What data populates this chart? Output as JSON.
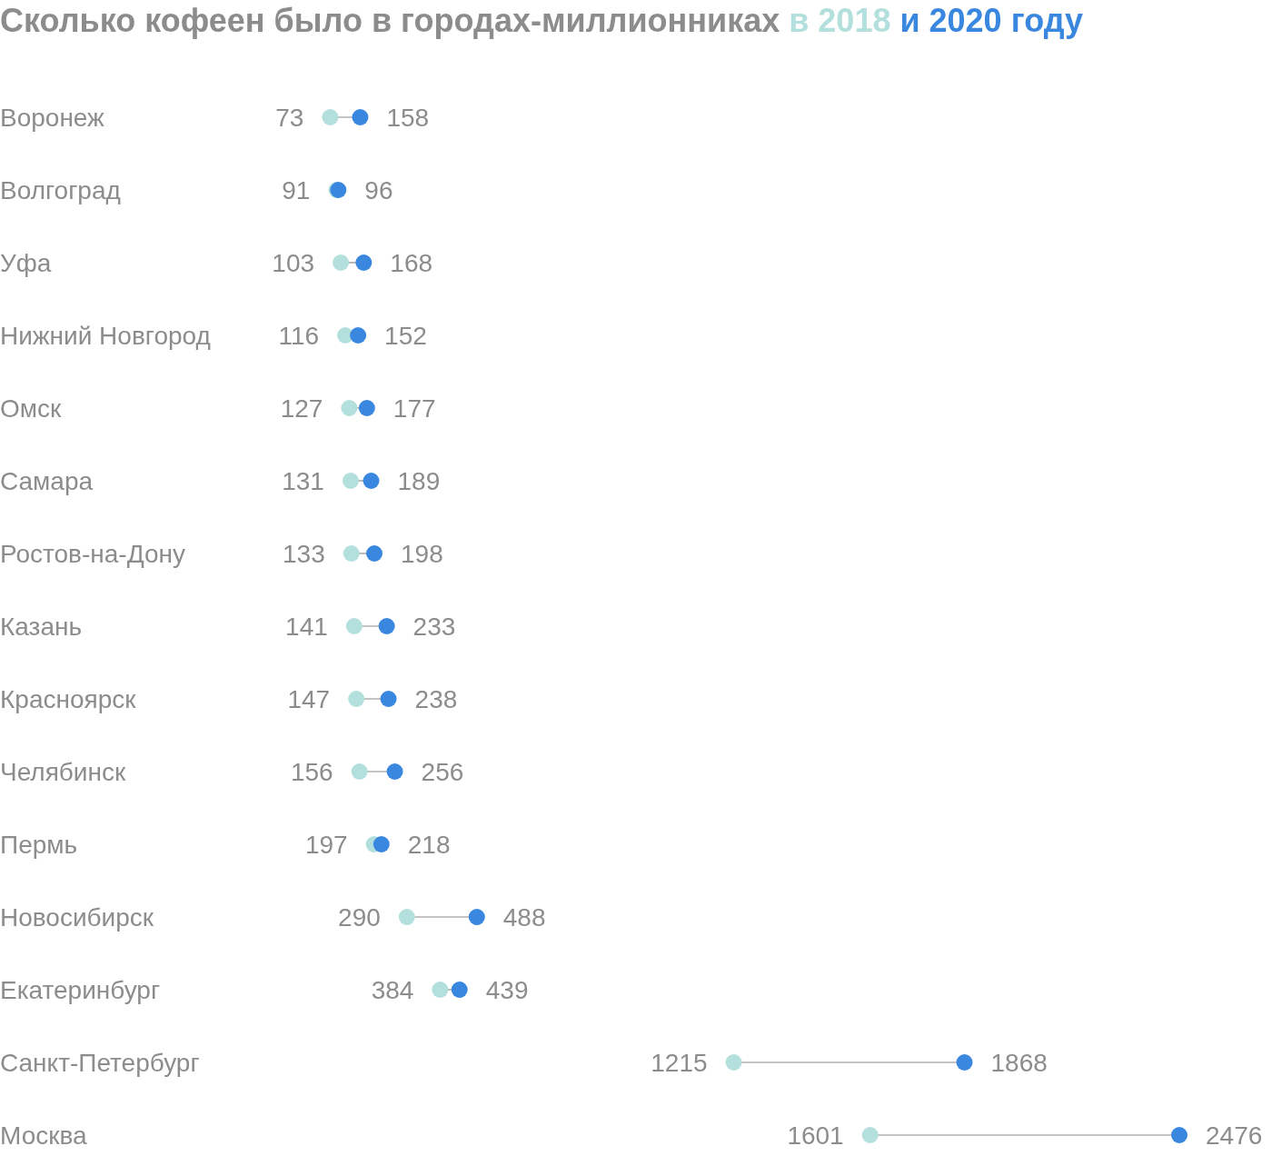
{
  "chart_data": {
    "type": "scatter",
    "orientation": "horizontal",
    "title": "Сколько кофеен было в городах-миллионниках",
    "categories": [
      "Воронеж",
      "Волгоград",
      "Уфа",
      "Нижний Новгород",
      "Омск",
      "Самара",
      "Ростов-на-Дону",
      "Казань",
      "Красноярск",
      "Челябинск",
      "Пермь",
      "Новосибирск",
      "Екатеринбург",
      "Санкт-Петербург",
      "Москва"
    ],
    "series": [
      {
        "name": "в 2018",
        "color": "#b3dfdc",
        "values": [
          73,
          91,
          103,
          116,
          127,
          131,
          133,
          141,
          147,
          156,
          197,
          290,
          384,
          1215,
          1601
        ]
      },
      {
        "name": "и 2020 году",
        "color": "#3a87e0",
        "values": [
          158,
          96,
          168,
          152,
          177,
          189,
          198,
          233,
          238,
          256,
          218,
          488,
          439,
          1868,
          2476
        ]
      }
    ],
    "data_labels": true,
    "marker": "circle"
  }
}
